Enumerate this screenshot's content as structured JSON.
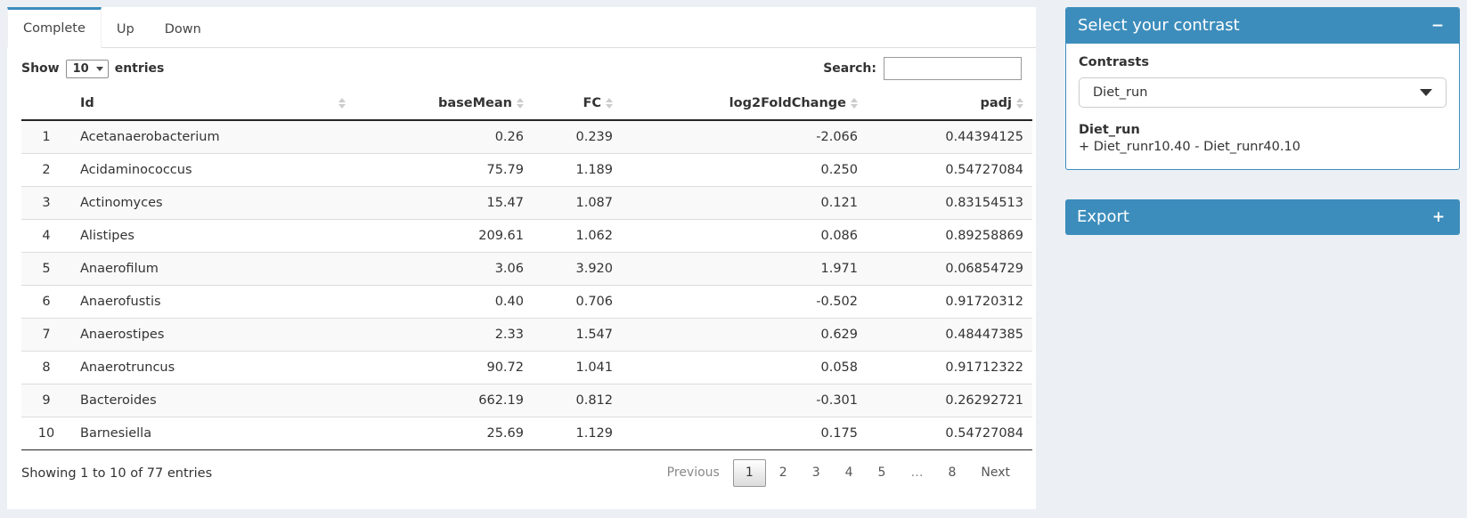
{
  "colors": {
    "accent": "#3c8dbc",
    "page_bg": "#ecf0f5",
    "stripe": "#f9f9f9"
  },
  "tabs": [
    {
      "label": "Complete",
      "active": true
    },
    {
      "label": "Up",
      "active": false
    },
    {
      "label": "Down",
      "active": false
    }
  ],
  "length_control": {
    "prefix": "Show",
    "value": "10",
    "suffix": "entries"
  },
  "search": {
    "label": "Search:",
    "value": ""
  },
  "table": {
    "columns": [
      {
        "label": "",
        "sortable": false
      },
      {
        "label": "Id",
        "sortable": true
      },
      {
        "label": "baseMean",
        "sortable": true
      },
      {
        "label": "FC",
        "sortable": true
      },
      {
        "label": "log2FoldChange",
        "sortable": true
      },
      {
        "label": "padj",
        "sortable": true
      }
    ],
    "rows": [
      {
        "n": "1",
        "id": "Acetanaerobacterium",
        "baseMean": "0.26",
        "fc": "0.239",
        "log2fc": "-2.066",
        "padj": "0.44394125"
      },
      {
        "n": "2",
        "id": "Acidaminococcus",
        "baseMean": "75.79",
        "fc": "1.189",
        "log2fc": "0.250",
        "padj": "0.54727084"
      },
      {
        "n": "3",
        "id": "Actinomyces",
        "baseMean": "15.47",
        "fc": "1.087",
        "log2fc": "0.121",
        "padj": "0.83154513"
      },
      {
        "n": "4",
        "id": "Alistipes",
        "baseMean": "209.61",
        "fc": "1.062",
        "log2fc": "0.086",
        "padj": "0.89258869"
      },
      {
        "n": "5",
        "id": "Anaerofilum",
        "baseMean": "3.06",
        "fc": "3.920",
        "log2fc": "1.971",
        "padj": "0.06854729"
      },
      {
        "n": "6",
        "id": "Anaerofustis",
        "baseMean": "0.40",
        "fc": "0.706",
        "log2fc": "-0.502",
        "padj": "0.91720312"
      },
      {
        "n": "7",
        "id": "Anaerostipes",
        "baseMean": "2.33",
        "fc": "1.547",
        "log2fc": "0.629",
        "padj": "0.48447385"
      },
      {
        "n": "8",
        "id": "Anaerotruncus",
        "baseMean": "90.72",
        "fc": "1.041",
        "log2fc": "0.058",
        "padj": "0.91712322"
      },
      {
        "n": "9",
        "id": "Bacteroides",
        "baseMean": "662.19",
        "fc": "0.812",
        "log2fc": "-0.301",
        "padj": "0.26292721"
      },
      {
        "n": "10",
        "id": "Barnesiella",
        "baseMean": "25.69",
        "fc": "1.129",
        "log2fc": "0.175",
        "padj": "0.54727084"
      }
    ]
  },
  "footer": {
    "info": "Showing 1 to 10 of 77 entries",
    "pagination": [
      "Previous",
      "1",
      "2",
      "3",
      "4",
      "5",
      "…",
      "8",
      "Next"
    ]
  },
  "contrast_panel": {
    "title": "Select your contrast",
    "collapse_icon": "−",
    "contrasts_label": "Contrasts",
    "selected_contrast": "Diet_run",
    "detail_title": "Diet_run",
    "detail_formula": "+ Diet_runr10.40 - Diet_runr40.10"
  },
  "export_panel": {
    "title": "Export",
    "expand_icon": "+"
  }
}
